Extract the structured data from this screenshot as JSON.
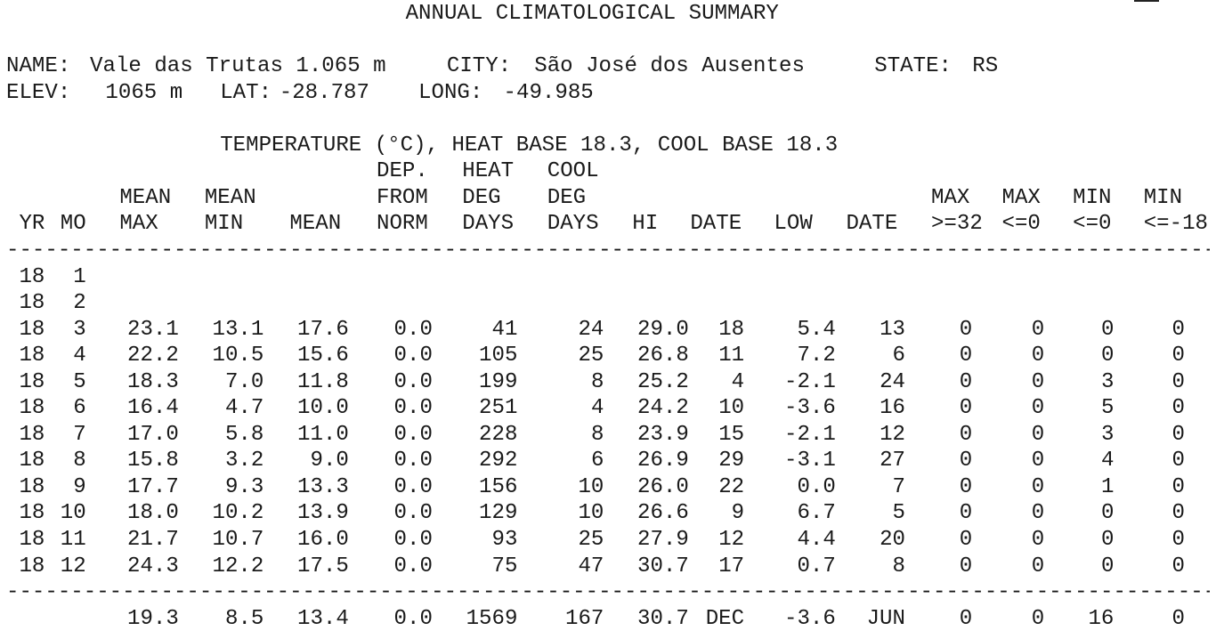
{
  "title": "ANNUAL CLIMATOLOGICAL SUMMARY",
  "station": {
    "name_label": "NAME:",
    "name": "Vale das Trutas 1.065 m",
    "city_label": "CITY:",
    "city": "São José dos Ausentes",
    "state_label": "STATE:",
    "state": "RS",
    "elev_label": "ELEV:",
    "elev": "1065 m",
    "lat_label": "LAT:",
    "lat": "-28.787",
    "long_label": "LONG:",
    "long": "-49.985"
  },
  "table_title": "TEMPERATURE (°C), HEAT BASE 18.3, COOL BASE 18.3",
  "header_rows": [
    "                                    DEP.  HEAT  COOL",
    "        MEAN  MEAN                  FROM  DEG   DEG                                  MAX  MAX   MIN   MIN",
    " YR MO  MAX   MIN    MEAN   NORM  DAYS  DAYS  HI   DATE  LOW   DATE  >=32 <=0   <=0   <=-18"
  ],
  "columns": [
    "YR",
    "MO",
    "MEAN MAX",
    "MEAN MIN",
    "MEAN",
    "DEP. FROM NORM",
    "HEAT DEG DAYS",
    "COOL DEG DAYS",
    "HI",
    "DATE",
    "LOW",
    "DATE",
    "MAX >=32",
    "MAX <=0",
    "MIN <=0",
    "MIN <=-18"
  ],
  "rows": [
    " 18  1",
    " 18  2",
    " 18  3  23.1  13.1  17.6   0.0    41    24  29.0  18   5.4   13    0    0    0    0",
    " 18  4  22.2  10.5  15.6   0.0   105    25  26.8  11   7.2    6    0    0    0    0",
    " 18  5  18.3   7.0  11.8   0.0   199     8  25.2   4  -2.1   24    0    0    3    0",
    " 18  6  16.4   4.7  10.0   0.0   251     4  24.2  10  -3.6   16    0    0    5    0",
    " 18  7  17.0   5.8  11.0   0.0   228     8  23.9  15  -2.1   12    0    0    3    0",
    " 18  8  15.8   3.2   9.0   0.0   292     6  26.9  29  -3.1   27    0    0    4    0",
    " 18  9  17.7   9.3  13.3   0.0   156    10  26.0  22   0.0    7    0    0    1    0",
    " 18 10  18.0  10.2  13.9   0.0   129    10  26.6   9   6.7    5    0    0    0    0",
    " 18 11  21.7  10.7  16.0   0.0    93    25  27.9  12   4.4   20    0    0    0    0",
    " 18 12  24.3  12.2  17.5   0.0    75    47  30.7  17   0.7    8    0    0    0    0"
  ],
  "rows_values": [
    {
      "yr": "18",
      "mo": "1",
      "values": []
    },
    {
      "yr": "18",
      "mo": "2",
      "values": []
    },
    {
      "yr": "18",
      "mo": "3",
      "values": [
        "23.1",
        "13.1",
        "17.6",
        "0.0",
        "41",
        "24",
        "29.0",
        "18",
        "5.4",
        "13",
        "0",
        "0",
        "0",
        "0"
      ]
    },
    {
      "yr": "18",
      "mo": "4",
      "values": [
        "22.2",
        "10.5",
        "15.6",
        "0.0",
        "105",
        "25",
        "26.8",
        "11",
        "7.2",
        "6",
        "0",
        "0",
        "0",
        "0"
      ]
    },
    {
      "yr": "18",
      "mo": "5",
      "values": [
        "18.3",
        "7.0",
        "11.8",
        "0.0",
        "199",
        "8",
        "25.2",
        "4",
        "-2.1",
        "24",
        "0",
        "0",
        "3",
        "0"
      ]
    },
    {
      "yr": "18",
      "mo": "6",
      "values": [
        "16.4",
        "4.7",
        "10.0",
        "0.0",
        "251",
        "4",
        "24.2",
        "10",
        "-3.6",
        "16",
        "0",
        "0",
        "5",
        "0"
      ]
    },
    {
      "yr": "18",
      "mo": "7",
      "values": [
        "17.0",
        "5.8",
        "11.0",
        "0.0",
        "228",
        "8",
        "23.9",
        "15",
        "-2.1",
        "12",
        "0",
        "0",
        "3",
        "0"
      ]
    },
    {
      "yr": "18",
      "mo": "8",
      "values": [
        "15.8",
        "3.2",
        "9.0",
        "0.0",
        "292",
        "6",
        "26.9",
        "29",
        "-3.1",
        "27",
        "0",
        "0",
        "4",
        "0"
      ]
    },
    {
      "yr": "18",
      "mo": "9",
      "values": [
        "17.7",
        "9.3",
        "13.3",
        "0.0",
        "156",
        "10",
        "26.0",
        "22",
        "0.0",
        "7",
        "0",
        "0",
        "1",
        "0"
      ]
    },
    {
      "yr": "18",
      "mo": "10",
      "values": [
        "18.0",
        "10.2",
        "13.9",
        "0.0",
        "129",
        "10",
        "26.6",
        "9",
        "6.7",
        "5",
        "0",
        "0",
        "0",
        "0"
      ]
    },
    {
      "yr": "18",
      "mo": "11",
      "values": [
        "21.7",
        "10.7",
        "16.0",
        "0.0",
        "93",
        "25",
        "27.9",
        "12",
        "4.4",
        "20",
        "0",
        "0",
        "0",
        "0"
      ]
    },
    {
      "yr": "18",
      "mo": "12",
      "values": [
        "24.3",
        "12.2",
        "17.5",
        "0.0",
        "75",
        "47",
        "30.7",
        "17",
        "0.7",
        "8",
        "0",
        "0",
        "0",
        "0"
      ]
    }
  ],
  "summary_values": [
    "19.3",
    "8.5",
    "13.4",
    "0.0",
    "1569",
    "167",
    "30.7",
    "DEC",
    "-3.6",
    "JUN",
    "0",
    "0",
    "16",
    "0"
  ]
}
